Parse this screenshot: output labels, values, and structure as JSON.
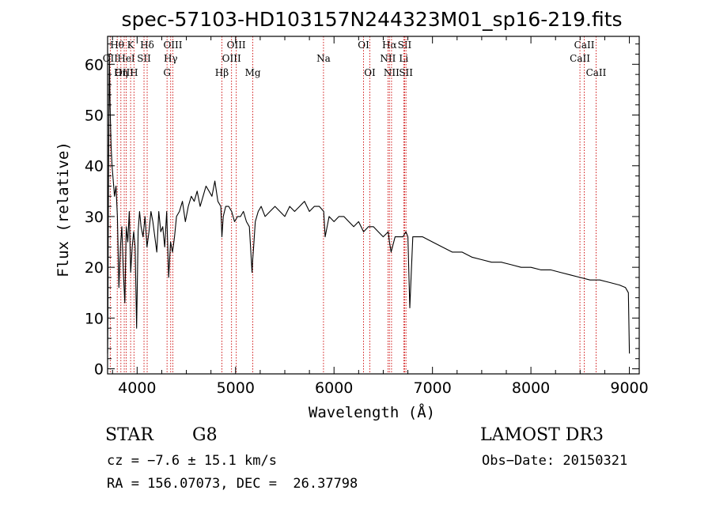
{
  "chart_data": {
    "type": "line",
    "title": "spec-57103-HD103157N244323M01_sp16-219.fits",
    "xlabel": "Wavelength (Å)",
    "ylabel": "Flux (relative)",
    "xlim": [
      3700,
      9100
    ],
    "ylim": [
      -1,
      65.5
    ],
    "xticks": [
      4000,
      5000,
      6000,
      7000,
      8000,
      9000
    ],
    "yticks": [
      0,
      10,
      20,
      30,
      40,
      50,
      60
    ],
    "series": [
      {
        "name": "flux",
        "x": [
          3700,
          3703,
          3707,
          3712,
          3718,
          3725,
          3735,
          3745,
          3758,
          3770,
          3785,
          3800,
          3815,
          3830,
          3845,
          3860,
          3875,
          3890,
          3905,
          3920,
          3935,
          3950,
          3965,
          3980,
          3995,
          4010,
          4025,
          4040,
          4060,
          4080,
          4100,
          4120,
          4140,
          4160,
          4180,
          4200,
          4220,
          4240,
          4260,
          4280,
          4300,
          4320,
          4340,
          4360,
          4380,
          4400,
          4430,
          4460,
          4490,
          4520,
          4550,
          4580,
          4610,
          4640,
          4670,
          4700,
          4730,
          4760,
          4790,
          4820,
          4850,
          4861,
          4875,
          4900,
          4930,
          4960,
          4990,
          5020,
          5050,
          5080,
          5110,
          5140,
          5167,
          5172,
          5183,
          5200,
          5230,
          5260,
          5300,
          5350,
          5400,
          5450,
          5500,
          5550,
          5600,
          5650,
          5700,
          5750,
          5800,
          5850,
          5895,
          5910,
          5950,
          6000,
          6050,
          6100,
          6150,
          6200,
          6250,
          6300,
          6350,
          6400,
          6450,
          6500,
          6550,
          6563,
          6580,
          6620,
          6660,
          6700,
          6730,
          6750,
          6770,
          6800,
          6900,
          7000,
          7100,
          7200,
          7300,
          7400,
          7500,
          7600,
          7700,
          7800,
          7900,
          8000,
          8100,
          8200,
          8300,
          8400,
          8500,
          8600,
          8700,
          8800,
          8900,
          8960,
          8990,
          9000
        ],
        "values": [
          3,
          10,
          30,
          45,
          62,
          52,
          44,
          40,
          37,
          34,
          36,
          30,
          16,
          24,
          28,
          19,
          13,
          28,
          25,
          31,
          19,
          24,
          27,
          24,
          8,
          27,
          31,
          28,
          26,
          30,
          24,
          27,
          31,
          29,
          26,
          23,
          31,
          27,
          28,
          24,
          31,
          18,
          25,
          23,
          26,
          30,
          31,
          33,
          29,
          32,
          34,
          33,
          35,
          32,
          34,
          36,
          35,
          34,
          37,
          33,
          32,
          26,
          30,
          32,
          32,
          31,
          29,
          30,
          30,
          31,
          29,
          28,
          19,
          21,
          24,
          29,
          31,
          32,
          30,
          31,
          32,
          31,
          30,
          32,
          31,
          32,
          33,
          31,
          32,
          32,
          31,
          26,
          30,
          29,
          30,
          30,
          29,
          28,
          29,
          27,
          28,
          28,
          27,
          26,
          27,
          25,
          23,
          26,
          26,
          26,
          27,
          26,
          12,
          26,
          26,
          25,
          24,
          23,
          23,
          22,
          21.5,
          21,
          21,
          20.5,
          20,
          20,
          19.5,
          19.5,
          19,
          18.5,
          18,
          17.5,
          17.5,
          17,
          16.5,
          16,
          15,
          3
        ]
      }
    ],
    "line_markers": [
      {
        "label": "OII",
        "x": 3727,
        "row": 2
      },
      {
        "label": "Hθ",
        "x": 3798,
        "row": 1
      },
      {
        "label": "OIII",
        "x": 3869,
        "row": 3
      },
      {
        "label": "HeI",
        "x": 3889,
        "row": 2
      },
      {
        "label": "K",
        "x": 3934,
        "row": 1
      },
      {
        "label": "Hη",
        "x": 3835,
        "row": 3
      },
      {
        "label": "H",
        "x": 3968,
        "row": 3
      },
      {
        "label": "SII",
        "x": 4070,
        "row": 2
      },
      {
        "label": "Hδ",
        "x": 4102,
        "row": 1
      },
      {
        "label": "OIII",
        "x": 4363,
        "row": 1
      },
      {
        "label": "Hγ",
        "x": 4341,
        "row": 2
      },
      {
        "label": "G",
        "x": 4304,
        "row": 3
      },
      {
        "label": "OIII",
        "x": 5007,
        "row": 1
      },
      {
        "label": "OIII",
        "x": 4959,
        "row": 2
      },
      {
        "label": "Hβ",
        "x": 4861,
        "row": 3
      },
      {
        "label": "Mg",
        "x": 5175,
        "row": 3
      },
      {
        "label": "Na",
        "x": 5893,
        "row": 2
      },
      {
        "label": "OI",
        "x": 6300,
        "row": 1
      },
      {
        "label": "OI",
        "x": 6364,
        "row": 3
      },
      {
        "label": "Hα",
        "x": 6563,
        "row": 1
      },
      {
        "label": "NII",
        "x": 6548,
        "row": 2
      },
      {
        "label": "NII",
        "x": 6584,
        "row": 3
      },
      {
        "label": "SII",
        "x": 6717,
        "row": 1
      },
      {
        "label": "Li",
        "x": 6708,
        "row": 2
      },
      {
        "label": "SII",
        "x": 6731,
        "row": 3
      },
      {
        "label": "CaII",
        "x": 8542,
        "row": 1
      },
      {
        "label": "CaII",
        "x": 8498,
        "row": 2
      },
      {
        "label": "CaII",
        "x": 8662,
        "row": 3
      }
    ],
    "colors": {
      "spectrum": "#000000",
      "markers": "#cc0000",
      "axes": "#000000"
    }
  },
  "footer": {
    "object_class": "STAR",
    "subclass": "G8",
    "survey": "LAMOST DR3",
    "redshift_text": "cz = −7.6 ± 15.1 km/s",
    "obs_date_text": "Obs−Date: 20150321",
    "coords_text": "RA = 156.07073, DEC =  26.37798"
  }
}
